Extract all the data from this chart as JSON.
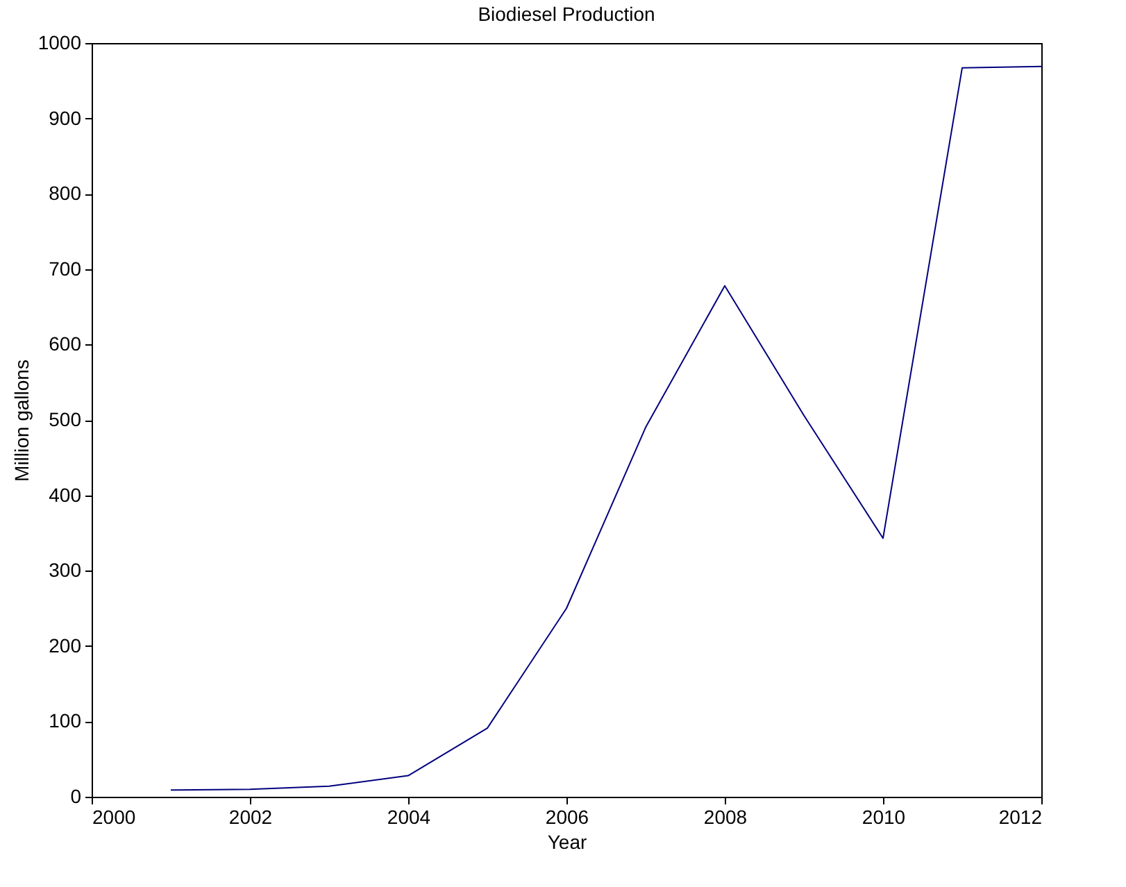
{
  "chart_data": {
    "type": "line",
    "title": "Biodiesel Production",
    "xlabel": "Year",
    "ylabel": "Million gallons",
    "x": [
      2001,
      2002,
      2003,
      2004,
      2005,
      2006,
      2007,
      2008,
      2009,
      2010,
      2011,
      2012
    ],
    "series": [
      {
        "color": "#00007f",
        "values": [
          9,
          10,
          14,
          28,
          91,
          250,
          490,
          678,
          506,
          343,
          967,
          969
        ]
      }
    ],
    "xlim": [
      2000,
      2012
    ],
    "xticks": [
      2000,
      2002,
      2004,
      2006,
      2008,
      2010,
      2012
    ],
    "ylim": [
      0,
      1000
    ],
    "yticks": [
      0,
      100,
      200,
      300,
      400,
      500,
      600,
      700,
      800,
      900,
      1000
    ],
    "grid": false,
    "marker": "none",
    "line_style": "solid"
  }
}
